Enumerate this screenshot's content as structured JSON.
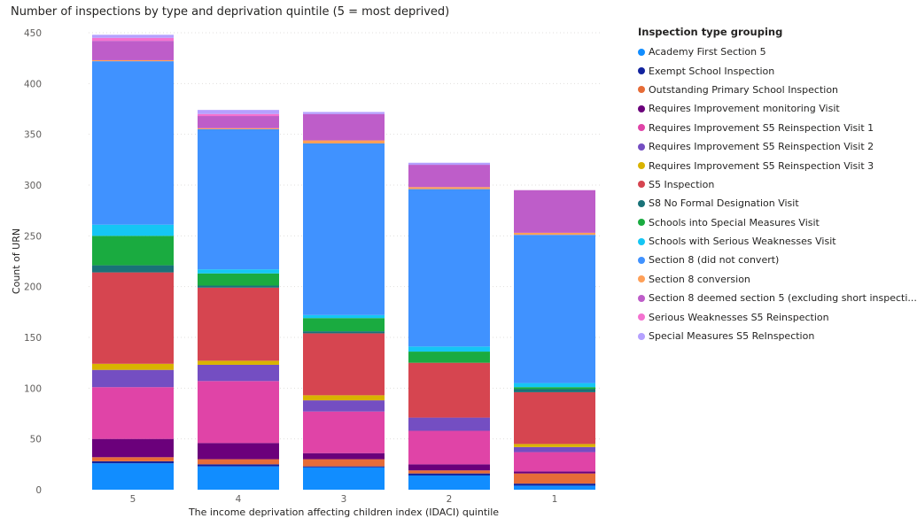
{
  "chart_data": {
    "type": "bar",
    "stacked": true,
    "title": "Number of inspections by type and deprivation quintile (5 = most deprived)",
    "xlabel": "The income deprivation affecting children index (IDACI) quintile",
    "ylabel": "Count of URN",
    "ylim": [
      0,
      450
    ],
    "yticks": [
      0,
      50,
      100,
      150,
      200,
      250,
      300,
      350,
      400,
      450
    ],
    "categories": [
      "5",
      "4",
      "3",
      "2",
      "1"
    ],
    "legend_title": "Inspection type grouping",
    "legend_position": "right",
    "grid": true,
    "series": [
      {
        "name": "Academy First Section 5",
        "color": "#118DFF",
        "values": [
          26,
          23,
          22,
          14,
          4
        ]
      },
      {
        "name": "Exempt School Inspection",
        "color": "#12239E",
        "values": [
          2,
          2,
          1,
          2,
          2
        ]
      },
      {
        "name": "Outstanding Primary School Inspection",
        "color": "#E66C37",
        "values": [
          4,
          5,
          7,
          3,
          10
        ]
      },
      {
        "name": "Requires Improvement monitoring Visit",
        "color": "#6B007B",
        "values": [
          18,
          16,
          6,
          6,
          2
        ]
      },
      {
        "name": "Requires Improvement S5 Reinspection Visit 1",
        "color": "#E044A7",
        "values": [
          51,
          61,
          41,
          33,
          19
        ]
      },
      {
        "name": "Requires Improvement S5 Reinspection Visit 2",
        "color": "#744EC2",
        "values": [
          17,
          16,
          11,
          13,
          5
        ]
      },
      {
        "name": "Requires Improvement S5 Reinspection Visit 3",
        "color": "#D9B300",
        "values": [
          6,
          4,
          5,
          0,
          3
        ]
      },
      {
        "name": "S5 Inspection",
        "color": "#D64550",
        "values": [
          90,
          72,
          61,
          54,
          51
        ]
      },
      {
        "name": "S8 No Formal Designation Visit",
        "color": "#197278",
        "values": [
          7,
          2,
          2,
          0,
          3
        ]
      },
      {
        "name": "Schools into Special Measures Visit",
        "color": "#1AAB40",
        "values": [
          29,
          12,
          13,
          11,
          2
        ]
      },
      {
        "name": "Schools with Serious Weaknesses Visit",
        "color": "#15C6F4",
        "values": [
          11,
          4,
          3,
          5,
          4
        ]
      },
      {
        "name": "Section 8 (did not convert)",
        "color": "#4092FF",
        "values": [
          161,
          138,
          169,
          155,
          146
        ]
      },
      {
        "name": "Section 8 conversion",
        "color": "#FFA058",
        "values": [
          1,
          1,
          3,
          2,
          2
        ]
      },
      {
        "name": "Section 8 deemed section 5 (excluding short inspecti...",
        "color": "#BE5DC9",
        "values": [
          19,
          12,
          26,
          22,
          42
        ]
      },
      {
        "name": "Serious Weaknesses S5 Reinspection",
        "color": "#F472D0",
        "values": [
          3,
          2,
          0,
          0,
          0
        ]
      },
      {
        "name": "Special Measures S5 ReInspection",
        "color": "#B5A1FF",
        "values": [
          3,
          4,
          2,
          2,
          0
        ]
      }
    ]
  }
}
